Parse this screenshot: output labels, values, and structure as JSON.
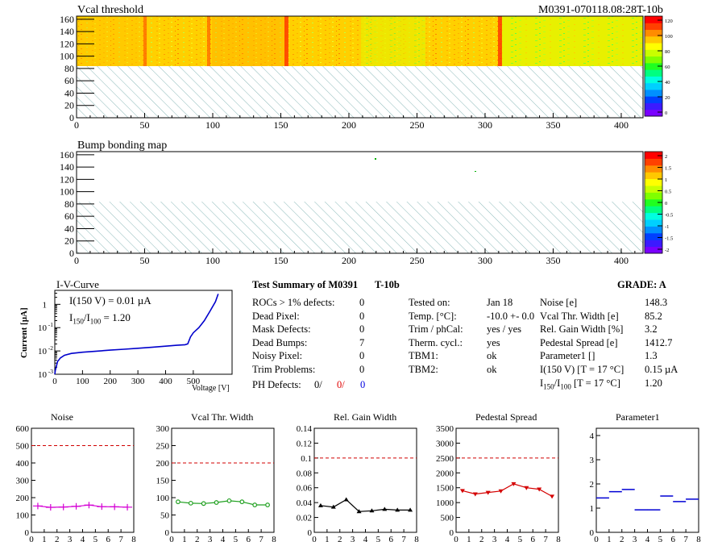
{
  "header": {
    "map1_title": "Vcal threshold",
    "module_id": "M0391-070118.08:28T-10b",
    "map2_title": "Bump bonding map"
  },
  "map_axes": {
    "x_ticks": [
      "0",
      "50",
      "100",
      "150",
      "200",
      "250",
      "300",
      "350",
      "400"
    ],
    "y_ticks": [
      "0",
      "20",
      "40",
      "60",
      "80",
      "100",
      "120",
      "140",
      "160"
    ]
  },
  "palette1_ticks": [
    "120",
    "100",
    "80",
    "60",
    "40",
    "20",
    "0"
  ],
  "palette2_ticks": [
    "2",
    "1.5",
    "1",
    "0.5",
    "0",
    "-0.5",
    "-1",
    "-1.5",
    "-2"
  ],
  "iv": {
    "title": "I-V-Curve",
    "i150": "I(150 V) = 0.01 µA",
    "ratio_pre": "I",
    "ratio_sub1": "150",
    "ratio_mid": "/I",
    "ratio_sub2": "100",
    "ratio_val": " =  1.20",
    "ylabel": "Current [µA]",
    "xlabel": "Voltage [V]",
    "x_ticks": [
      "0",
      "100",
      "200",
      "300",
      "400",
      "500"
    ],
    "y_ticks": [
      "1",
      "10",
      "10",
      "10"
    ],
    "y_exps": [
      "",
      "-1",
      "-2",
      "-3"
    ]
  },
  "summary": {
    "title": "Test Summary of M0391",
    "tag": "T-10b",
    "grade": "GRADE:  A",
    "left": [
      {
        "label": "ROCs > 1% defects:",
        "value": "0"
      },
      {
        "label": "Dead Pixel:",
        "value": "0"
      },
      {
        "label": "Mask Defects:",
        "value": "0"
      },
      {
        "label": "Dead Bumps:",
        "value": "7"
      },
      {
        "label": "Noisy Pixel:",
        "value": "0"
      },
      {
        "label": "Trim Problems:",
        "value": "0"
      }
    ],
    "ph_label": "PH Defects:",
    "ph_v1": "0/",
    "ph_v2": "0/",
    "ph_v3": "0",
    "mid": [
      {
        "label": "Tested on:",
        "value": "Jan 18"
      },
      {
        "label": "Temp. [°C]:",
        "value": "-10.0 +- 0.0"
      },
      {
        "label": "Trim / phCal:",
        "value": "yes / yes"
      },
      {
        "label": "Therm. cycl.:",
        "value": "yes"
      },
      {
        "label": "TBM1:",
        "value": "ok"
      },
      {
        "label": "TBM2:",
        "value": "ok"
      }
    ],
    "right": [
      {
        "label": "Noise [e]",
        "value": "148.3"
      },
      {
        "label": "Vcal Thr. Width [e]",
        "value": "85.2"
      },
      {
        "label": "Rel. Gain Width [%]",
        "value": "3.2"
      },
      {
        "label": "Pedestal Spread [e]",
        "value": "1412.7"
      },
      {
        "label": "Parameter1 []",
        "value": "1.3"
      },
      {
        "label": "I(150 V) [T = 17 °C]",
        "value": "0.15 µA"
      }
    ],
    "ratio_label_pre": "I",
    "ratio_label_s1": "150",
    "ratio_label_mid": "/I",
    "ratio_label_s2": "100",
    "ratio_label_post": "  [T = 17 °C]",
    "ratio_value": "1.20"
  },
  "chart_data": [
    {
      "type": "line",
      "title": "Noise",
      "categories": [
        0,
        1,
        2,
        3,
        4,
        5,
        6,
        7
      ],
      "values": [
        152,
        144,
        146,
        150,
        157,
        148,
        147,
        145
      ],
      "ylim": [
        0,
        600
      ],
      "y_ticks": [
        0,
        100,
        200,
        300,
        400,
        500,
        600
      ],
      "limit": 500,
      "color": "#d400d4",
      "marker": "cross"
    },
    {
      "type": "line",
      "title": "Vcal Thr. Width",
      "categories": [
        0,
        1,
        2,
        3,
        4,
        5,
        6,
        7
      ],
      "values": [
        88,
        84,
        83,
        86,
        91,
        88,
        79,
        79
      ],
      "ylim": [
        0,
        300
      ],
      "y_ticks": [
        0,
        50,
        100,
        150,
        200,
        250,
        300
      ],
      "limit": 200,
      "color": "#20a020",
      "marker": "circle"
    },
    {
      "type": "line",
      "title": "Rel. Gain Width",
      "categories": [
        0,
        1,
        2,
        3,
        4,
        5,
        6,
        7
      ],
      "values": [
        0.036,
        0.034,
        0.044,
        0.028,
        0.029,
        0.031,
        0.03,
        0.03
      ],
      "ylim": [
        0,
        0.14
      ],
      "y_ticks": [
        0,
        0.02,
        0.04,
        0.06,
        0.08,
        0.1,
        0.12,
        0.14
      ],
      "limit": 0.1,
      "color": "#000000",
      "marker": "triangle"
    },
    {
      "type": "line",
      "title": "Pedestal Spread",
      "categories": [
        0,
        1,
        2,
        3,
        4,
        5,
        6,
        7
      ],
      "values": [
        1400,
        1290,
        1340,
        1390,
        1630,
        1500,
        1450,
        1210
      ],
      "ylim": [
        0,
        3500
      ],
      "y_ticks": [
        0,
        500,
        1000,
        1500,
        2000,
        2500,
        3000,
        3500
      ],
      "limit": 2500,
      "color": "#d40000",
      "marker": "triangle-down"
    },
    {
      "type": "scatter",
      "title": "Parameter1",
      "categories": [
        0,
        1,
        2,
        3,
        4,
        5,
        6,
        7
      ],
      "values": [
        1.42,
        1.68,
        1.77,
        0.93,
        0.93,
        1.5,
        1.27,
        1.37
      ],
      "ylim": [
        0,
        4.3
      ],
      "y_ticks": [
        0,
        1,
        2,
        3,
        4
      ],
      "color": "#0000d4",
      "marker": "hbar"
    }
  ],
  "palette_colors": [
    "#7a00ff",
    "#3c1aff",
    "#0040ff",
    "#0090ff",
    "#00d0ff",
    "#00ffe0",
    "#00ff80",
    "#20ff20",
    "#80ff00",
    "#c8ff00",
    "#ffff00",
    "#ffc800",
    "#ff8c00",
    "#ff4000",
    "#ff0000"
  ]
}
